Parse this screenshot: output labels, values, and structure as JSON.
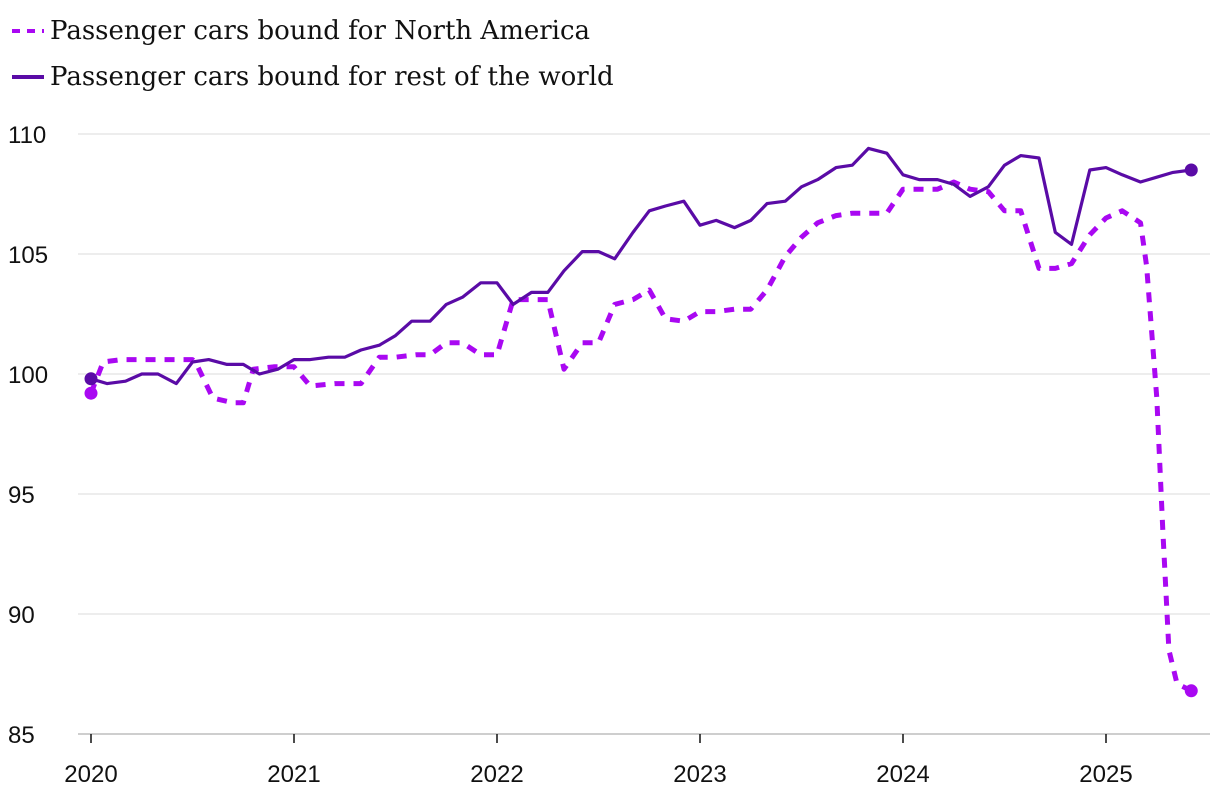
{
  "chart_data": {
    "type": "line",
    "title": "",
    "xlabel": "",
    "ylabel": "",
    "xlim": [
      2020,
      2025.5
    ],
    "ylim": [
      85,
      110
    ],
    "yticks": [
      85,
      90,
      95,
      100,
      105,
      110
    ],
    "yticklabels": [
      "85",
      "90",
      "95",
      "100",
      "105",
      "110"
    ],
    "xticks": [
      2020,
      2021,
      2022,
      2023,
      2024,
      2025
    ],
    "xticklabels": [
      "2020",
      "2021",
      "2022",
      "2023",
      "2024",
      "2025"
    ],
    "grid": true,
    "legend_position": "top-left",
    "series": [
      {
        "name": "Passenger cars bound for North America",
        "color": "#a908f2",
        "style": "dashed",
        "end_marker": true,
        "points": [
          [
            2020.0,
            99.2
          ],
          [
            2020.06,
            100.5
          ],
          [
            2020.15,
            100.6
          ],
          [
            2020.3,
            100.6
          ],
          [
            2020.5,
            100.6
          ],
          [
            2020.52,
            100.4
          ],
          [
            2020.6,
            99.0
          ],
          [
            2020.7,
            98.8
          ],
          [
            2020.75,
            98.8
          ],
          [
            2020.8,
            100.2
          ],
          [
            2020.9,
            100.3
          ],
          [
            2021.0,
            100.3
          ],
          [
            2021.08,
            99.5
          ],
          [
            2021.2,
            99.6
          ],
          [
            2021.33,
            99.6
          ],
          [
            2021.42,
            100.7
          ],
          [
            2021.5,
            100.7
          ],
          [
            2021.6,
            100.8
          ],
          [
            2021.67,
            100.8
          ],
          [
            2021.75,
            101.3
          ],
          [
            2021.83,
            101.3
          ],
          [
            2021.92,
            100.8
          ],
          [
            2022.0,
            100.8
          ],
          [
            2022.08,
            103.1
          ],
          [
            2022.17,
            103.1
          ],
          [
            2022.25,
            103.1
          ],
          [
            2022.33,
            100.2
          ],
          [
            2022.42,
            101.3
          ],
          [
            2022.5,
            101.3
          ],
          [
            2022.58,
            102.9
          ],
          [
            2022.67,
            103.1
          ],
          [
            2022.75,
            103.5
          ],
          [
            2022.83,
            102.3
          ],
          [
            2022.92,
            102.2
          ],
          [
            2023.0,
            102.6
          ],
          [
            2023.08,
            102.6
          ],
          [
            2023.17,
            102.7
          ],
          [
            2023.25,
            102.7
          ],
          [
            2023.33,
            103.5
          ],
          [
            2023.42,
            104.9
          ],
          [
            2023.5,
            105.7
          ],
          [
            2023.58,
            106.3
          ],
          [
            2023.67,
            106.6
          ],
          [
            2023.75,
            106.7
          ],
          [
            2023.92,
            106.7
          ],
          [
            2024.0,
            107.7
          ],
          [
            2024.08,
            107.7
          ],
          [
            2024.17,
            107.7
          ],
          [
            2024.25,
            108.0
          ],
          [
            2024.33,
            107.7
          ],
          [
            2024.42,
            107.6
          ],
          [
            2024.5,
            106.8
          ],
          [
            2024.58,
            106.8
          ],
          [
            2024.67,
            104.4
          ],
          [
            2024.75,
            104.4
          ],
          [
            2024.83,
            104.6
          ],
          [
            2024.92,
            105.8
          ],
          [
            2025.0,
            106.5
          ],
          [
            2025.08,
            106.8
          ],
          [
            2025.17,
            106.3
          ],
          [
            2025.2,
            104.5
          ],
          [
            2025.25,
            99.0
          ],
          [
            2025.28,
            93.5
          ],
          [
            2025.31,
            88.5
          ],
          [
            2025.35,
            87.1
          ],
          [
            2025.42,
            86.8
          ]
        ]
      },
      {
        "name": "Passenger cars bound for rest of the world",
        "color": "#5a0ba6",
        "style": "solid",
        "end_marker": true,
        "points": [
          [
            2020.0,
            99.8
          ],
          [
            2020.08,
            99.6
          ],
          [
            2020.17,
            99.7
          ],
          [
            2020.25,
            100.0
          ],
          [
            2020.33,
            100.0
          ],
          [
            2020.42,
            99.6
          ],
          [
            2020.5,
            100.5
          ],
          [
            2020.58,
            100.6
          ],
          [
            2020.67,
            100.4
          ],
          [
            2020.75,
            100.4
          ],
          [
            2020.83,
            100.0
          ],
          [
            2020.92,
            100.2
          ],
          [
            2021.0,
            100.6
          ],
          [
            2021.08,
            100.6
          ],
          [
            2021.17,
            100.7
          ],
          [
            2021.25,
            100.7
          ],
          [
            2021.33,
            101.0
          ],
          [
            2021.42,
            101.2
          ],
          [
            2021.5,
            101.6
          ],
          [
            2021.58,
            102.2
          ],
          [
            2021.67,
            102.2
          ],
          [
            2021.75,
            102.9
          ],
          [
            2021.83,
            103.2
          ],
          [
            2021.92,
            103.8
          ],
          [
            2022.0,
            103.8
          ],
          [
            2022.08,
            102.9
          ],
          [
            2022.17,
            103.4
          ],
          [
            2022.25,
            103.4
          ],
          [
            2022.33,
            104.3
          ],
          [
            2022.42,
            105.1
          ],
          [
            2022.5,
            105.1
          ],
          [
            2022.58,
            104.8
          ],
          [
            2022.67,
            105.9
          ],
          [
            2022.75,
            106.8
          ],
          [
            2022.83,
            107.0
          ],
          [
            2022.92,
            107.2
          ],
          [
            2023.0,
            106.2
          ],
          [
            2023.08,
            106.4
          ],
          [
            2023.17,
            106.1
          ],
          [
            2023.25,
            106.4
          ],
          [
            2023.33,
            107.1
          ],
          [
            2023.42,
            107.2
          ],
          [
            2023.5,
            107.8
          ],
          [
            2023.58,
            108.1
          ],
          [
            2023.67,
            108.6
          ],
          [
            2023.75,
            108.7
          ],
          [
            2023.83,
            109.4
          ],
          [
            2023.92,
            109.2
          ],
          [
            2024.0,
            108.3
          ],
          [
            2024.08,
            108.1
          ],
          [
            2024.17,
            108.1
          ],
          [
            2024.25,
            107.9
          ],
          [
            2024.33,
            107.4
          ],
          [
            2024.42,
            107.8
          ],
          [
            2024.5,
            108.7
          ],
          [
            2024.58,
            109.1
          ],
          [
            2024.67,
            109.0
          ],
          [
            2024.75,
            105.9
          ],
          [
            2024.83,
            105.4
          ],
          [
            2024.92,
            108.5
          ],
          [
            2025.0,
            108.6
          ],
          [
            2025.08,
            108.3
          ],
          [
            2025.17,
            108.0
          ],
          [
            2025.25,
            108.2
          ],
          [
            2025.33,
            108.4
          ],
          [
            2025.42,
            108.5
          ]
        ]
      }
    ]
  }
}
